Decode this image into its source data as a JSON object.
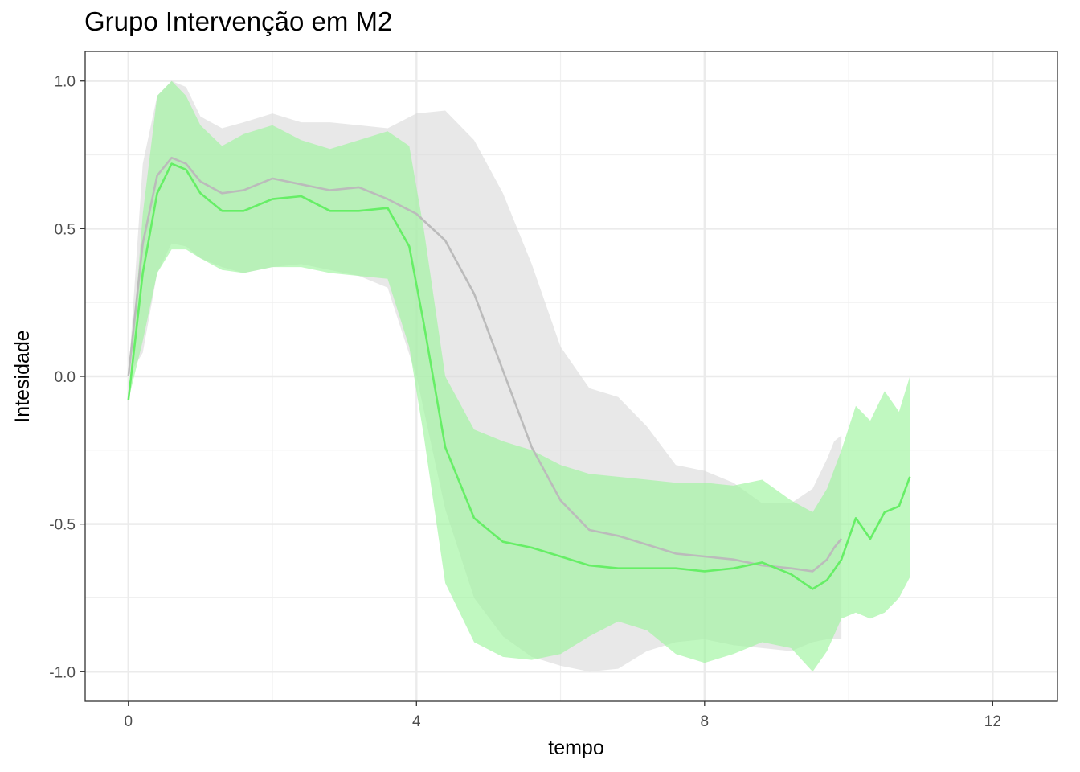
{
  "chart_data": {
    "type": "line",
    "title": "Grupo Intervenção em M2",
    "xlabel": "tempo",
    "ylabel": "Intesidade",
    "xlim": [
      -0.6,
      12.9
    ],
    "ylim": [
      -1.1,
      1.1
    ],
    "x_ticks": [
      0,
      4,
      8,
      12
    ],
    "x_tick_labels": [
      "0",
      "4",
      "8",
      "12"
    ],
    "y_ticks": [
      1.0,
      0.5,
      0.0,
      -0.5,
      -1.0
    ],
    "y_tick_labels": [
      "1.0",
      "0.5",
      "0.0",
      "-0.5",
      "-1.0"
    ],
    "grid": true,
    "theme": "bw",
    "series": [
      {
        "color": "#bbbbbb",
        "band_color": "#d9d9d9",
        "x": [
          0,
          0.2,
          0.4,
          0.6,
          0.8,
          1.0,
          1.3,
          1.6,
          2.0,
          2.4,
          2.8,
          3.2,
          3.6,
          4.0,
          4.4,
          4.8,
          5.2,
          5.6,
          6.0,
          6.4,
          6.8,
          7.2,
          7.6,
          8.0,
          8.4,
          8.8,
          9.2,
          9.5,
          9.7,
          9.8,
          9.9
        ],
        "mean": [
          0.0,
          0.45,
          0.68,
          0.74,
          0.72,
          0.66,
          0.62,
          0.63,
          0.67,
          0.65,
          0.63,
          0.64,
          0.6,
          0.55,
          0.46,
          0.28,
          0.02,
          -0.24,
          -0.42,
          -0.52,
          -0.54,
          -0.57,
          -0.6,
          -0.61,
          -0.62,
          -0.64,
          -0.65,
          -0.66,
          -0.62,
          -0.58,
          -0.55
        ],
        "lower": [
          0.0,
          0.08,
          0.35,
          0.45,
          0.44,
          0.4,
          0.37,
          0.35,
          0.37,
          0.38,
          0.36,
          0.34,
          0.3,
          0.0,
          -0.45,
          -0.75,
          -0.88,
          -0.95,
          -0.98,
          -1.0,
          -0.99,
          -0.93,
          -0.9,
          -0.89,
          -0.91,
          -0.92,
          -0.93,
          -0.9,
          -0.89,
          -0.89,
          -0.89
        ],
        "upper": [
          0.0,
          0.72,
          0.95,
          1.0,
          0.98,
          0.88,
          0.84,
          0.86,
          0.89,
          0.86,
          0.86,
          0.85,
          0.84,
          0.89,
          0.9,
          0.8,
          0.62,
          0.38,
          0.1,
          -0.04,
          -0.07,
          -0.17,
          -0.3,
          -0.32,
          -0.36,
          -0.43,
          -0.43,
          -0.38,
          -0.28,
          -0.22,
          -0.2
        ]
      },
      {
        "color": "#66ee66",
        "band_color": "#9ef59e",
        "x": [
          0,
          0.2,
          0.4,
          0.6,
          0.8,
          1.0,
          1.3,
          1.6,
          2.0,
          2.4,
          2.8,
          3.2,
          3.6,
          3.9,
          4.1,
          4.4,
          4.8,
          5.2,
          5.6,
          6.0,
          6.4,
          6.8,
          7.2,
          7.6,
          8.0,
          8.4,
          8.8,
          9.2,
          9.5,
          9.7,
          9.9,
          10.1,
          10.3,
          10.5,
          10.7,
          10.85
        ],
        "mean": [
          -0.08,
          0.35,
          0.62,
          0.72,
          0.7,
          0.62,
          0.56,
          0.56,
          0.6,
          0.61,
          0.56,
          0.56,
          0.57,
          0.44,
          0.18,
          -0.24,
          -0.48,
          -0.56,
          -0.58,
          -0.61,
          -0.64,
          -0.65,
          -0.65,
          -0.65,
          -0.66,
          -0.65,
          -0.63,
          -0.67,
          -0.72,
          -0.69,
          -0.62,
          -0.48,
          -0.55,
          -0.46,
          -0.44,
          -0.34
        ],
        "lower": [
          -0.08,
          0.12,
          0.35,
          0.43,
          0.43,
          0.4,
          0.36,
          0.35,
          0.37,
          0.37,
          0.35,
          0.34,
          0.33,
          0.1,
          -0.2,
          -0.7,
          -0.9,
          -0.95,
          -0.96,
          -0.94,
          -0.88,
          -0.83,
          -0.86,
          -0.94,
          -0.97,
          -0.94,
          -0.9,
          -0.92,
          -1.0,
          -0.93,
          -0.82,
          -0.8,
          -0.82,
          -0.8,
          -0.75,
          -0.68
        ],
        "upper": [
          -0.08,
          0.55,
          0.95,
          1.0,
          0.95,
          0.85,
          0.78,
          0.82,
          0.85,
          0.8,
          0.77,
          0.8,
          0.83,
          0.78,
          0.5,
          0.0,
          -0.18,
          -0.22,
          -0.25,
          -0.3,
          -0.33,
          -0.34,
          -0.35,
          -0.36,
          -0.36,
          -0.37,
          -0.35,
          -0.42,
          -0.46,
          -0.38,
          -0.25,
          -0.1,
          -0.15,
          -0.05,
          -0.12,
          0.0
        ]
      }
    ]
  }
}
